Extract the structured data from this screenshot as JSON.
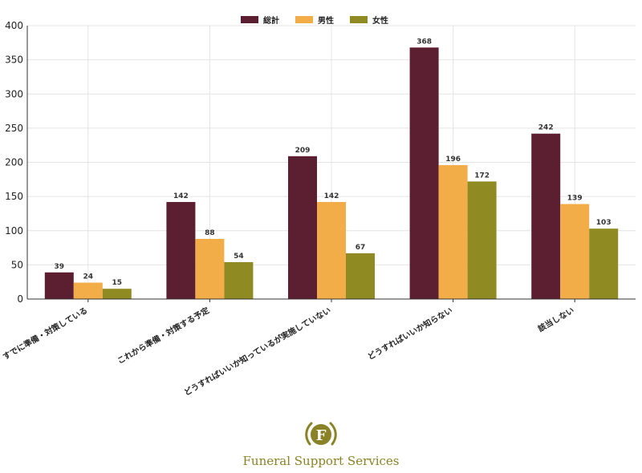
{
  "chart_data": {
    "type": "bar",
    "title": "",
    "xlabel": "",
    "ylabel": "",
    "ylim": [
      0,
      400
    ],
    "yticks": [
      0,
      50,
      100,
      150,
      200,
      250,
      300,
      350,
      400
    ],
    "grid": true,
    "legend_position": "top-center",
    "categories": [
      "すでに準備・対策している",
      "これから準備・対策する予定",
      "どうすればいいか知っているが実施していない",
      "どうすればいいか知らない",
      "該当しない"
    ],
    "series": [
      {
        "name": "総計",
        "color": "#5b1f31",
        "values": [
          39,
          142,
          209,
          368,
          242
        ]
      },
      {
        "name": "男性",
        "color": "#f2ad48",
        "values": [
          24,
          88,
          142,
          196,
          139
        ]
      },
      {
        "name": "女性",
        "color": "#8f8a22",
        "values": [
          15,
          54,
          67,
          172,
          103
        ]
      }
    ]
  },
  "brand": {
    "logo_letter": "F",
    "name": "Funeral Support Services",
    "color": "#8a8226"
  }
}
